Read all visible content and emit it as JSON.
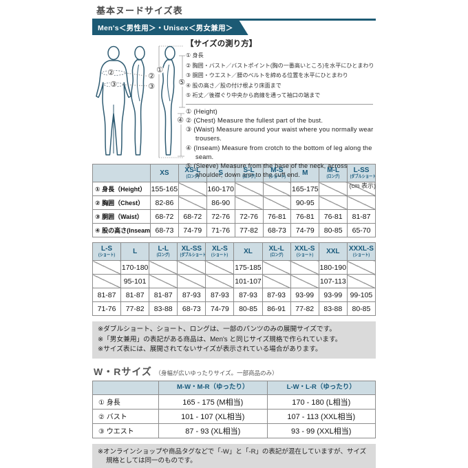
{
  "header": {
    "title": "基本ヌードサイズ表",
    "banner": "Men's＜男性用＞・Unisex＜男女兼用＞"
  },
  "unit_note": "(cm 表示)",
  "figure": {
    "markers": {
      "height": "①",
      "chest": "②",
      "waist": "③",
      "inseam": "④",
      "sleeve": "⑤"
    }
  },
  "instructions": {
    "title": "【サイズの測り方】",
    "jp": [
      "① 身長",
      "② 胸囲・バスト／バストポイント(胸の一番高いところ)を水平にひとまわり",
      "③ 胴囲・ウエスト／腰のベルトを締める位置を水平にひとまわり",
      "④ 股の高さ／股の付け根より床面まで",
      "⑤ 裄丈／後襟ぐり中央から肩線を通って袖口の端まで"
    ],
    "en": [
      "① (Height)",
      "② (Chest) Measure the fullest part of the bust.",
      "③ (Waist) Measure around your waist where you normally wear trousers.",
      "④ (Inseam) Measure from crotch to the bottom of leg along the seam.",
      "⑤ (Sleeve) Measure from the base of the neck, across shoulder, down arm to the cuff end."
    ]
  },
  "size_table_upper": {
    "columns": [
      {
        "label": "",
        "sub": ""
      },
      {
        "label": "XS",
        "sub": ""
      },
      {
        "label": "XS-L",
        "sub": "(ロング)"
      },
      {
        "label": "S",
        "sub": ""
      },
      {
        "label": "S-L",
        "sub": "(ロング)"
      },
      {
        "label": "M-S",
        "sub": "(ショート)"
      },
      {
        "label": "M",
        "sub": ""
      },
      {
        "label": "M-L",
        "sub": "(ロング)"
      },
      {
        "label": "L-SS",
        "sub": "(ダブルショート)"
      }
    ],
    "rows": [
      {
        "label": "① 身長（Height）",
        "cells": [
          "155-165",
          "",
          "160-170",
          "",
          "",
          "165-175",
          "",
          ""
        ]
      },
      {
        "label": "② 胸囲（Chest）",
        "cells": [
          "82-86",
          "",
          "86-90",
          "",
          "",
          "90-95",
          "",
          ""
        ]
      },
      {
        "label": "③ 胴囲（Waist）",
        "cells": [
          "68-72",
          "68-72",
          "72-76",
          "72-76",
          "76-81",
          "76-81",
          "76-81",
          "81-87"
        ]
      },
      {
        "label": "④ 股の高さ(Inseam)",
        "cells": [
          "68-73",
          "74-79",
          "71-76",
          "77-82",
          "68-73",
          "74-79",
          "80-85",
          "65-70"
        ]
      }
    ]
  },
  "size_table_lower": {
    "columns": [
      {
        "label": "L-S",
        "sub": "(ショート)"
      },
      {
        "label": "L",
        "sub": ""
      },
      {
        "label": "L-L",
        "sub": "(ロング)"
      },
      {
        "label": "XL-SS",
        "sub": "(ダブルショート)"
      },
      {
        "label": "XL-S",
        "sub": "(ショート)"
      },
      {
        "label": "XL",
        "sub": ""
      },
      {
        "label": "XL-L",
        "sub": "(ロング)"
      },
      {
        "label": "XXL-S",
        "sub": "(ショート)"
      },
      {
        "label": "XXL",
        "sub": ""
      },
      {
        "label": "XXXL-S",
        "sub": "(ショート)"
      }
    ],
    "rows": [
      {
        "cells": [
          "",
          "170-180",
          "",
          "",
          "",
          "175-185",
          "",
          "",
          "180-190",
          ""
        ]
      },
      {
        "cells": [
          "",
          "95-101",
          "",
          "",
          "",
          "101-107",
          "",
          "",
          "107-113",
          ""
        ]
      },
      {
        "cells": [
          "81-87",
          "81-87",
          "81-87",
          "87-93",
          "87-93",
          "87-93",
          "87-93",
          "93-99",
          "93-99",
          "99-105"
        ]
      },
      {
        "cells": [
          "71-76",
          "77-82",
          "83-88",
          "68-73",
          "74-79",
          "80-85",
          "86-91",
          "77-82",
          "83-88",
          "80-85"
        ]
      }
    ]
  },
  "notes": [
    "※ダブルショート、ショート、ロングは、一部のパンツのみの展開サイズです。",
    "※「男女兼用」の表記がある商品は、Men's と同じサイズ規格で作られています。",
    "※サイズ表には、展開されてないサイズが表示されている場合があります。"
  ],
  "wr": {
    "heading": "W・Rサイズ",
    "subheading": "（身幅が広いゆったりサイズ。一部商品のみ）",
    "note": "※オンラインショップや商品タグなどで「-W」と「-R」の表記が混在していますが、サイズ規格としては同一のものです。"
  },
  "wr_table": {
    "columns": [
      {
        "label": ""
      },
      {
        "label": "M-W・M-R（ゆったり）"
      },
      {
        "label": "L-W・L-R（ゆったり）"
      }
    ],
    "rows": [
      {
        "label": "① 身長",
        "cells": [
          "165 - 175 (M相当)",
          "170 - 180 (L相当)"
        ]
      },
      {
        "label": "② バスト",
        "cells": [
          "101 - 107 (XL相当)",
          "107 - 113 (XXL相当)"
        ]
      },
      {
        "label": "③ ウエスト",
        "cells": [
          "87 - 93 (XL相当)",
          "93 - 99 (XXL相当)"
        ]
      }
    ]
  }
}
